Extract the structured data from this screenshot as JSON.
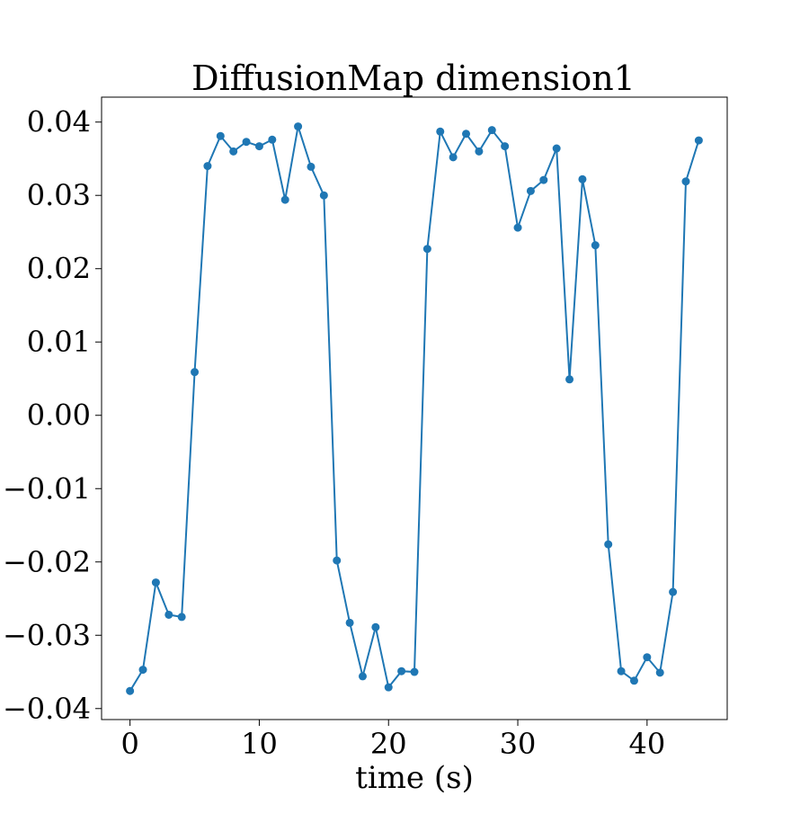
{
  "chart_data": {
    "type": "line",
    "title": "DiffusionMap dimension1",
    "xlabel": "time (s)",
    "ylabel": "",
    "xlim": [
      -2.2,
      46.2
    ],
    "ylim": [
      -0.0415,
      0.0434
    ],
    "x_ticks": [
      0,
      10,
      20,
      30,
      40
    ],
    "x_tick_labels": [
      "0",
      "10",
      "20",
      "30",
      "40"
    ],
    "y_ticks": [
      -0.04,
      -0.03,
      -0.02,
      -0.01,
      0.0,
      0.01,
      0.02,
      0.03,
      0.04
    ],
    "y_tick_labels": [
      "−0.04",
      "−0.03",
      "−0.02",
      "−0.01",
      "0.00",
      "0.01",
      "0.02",
      "0.03",
      "0.04"
    ],
    "grid": false,
    "series": [
      {
        "color": "#1f77b4",
        "marker": "circle",
        "x": [
          0,
          1,
          2,
          3,
          4,
          5,
          6,
          7,
          8,
          9,
          10,
          11,
          12,
          13,
          14,
          15,
          16,
          17,
          18,
          19,
          20,
          21,
          22,
          23,
          24,
          25,
          26,
          27,
          28,
          29,
          30,
          31,
          32,
          33,
          34,
          35,
          36,
          37,
          38,
          39,
          40,
          41,
          42,
          43,
          44
        ],
        "y": [
          -0.0376,
          -0.0347,
          -0.0228,
          -0.0272,
          -0.0275,
          0.0059,
          0.034,
          0.0381,
          0.036,
          0.0373,
          0.0367,
          0.0376,
          0.0294,
          0.0394,
          0.0339,
          0.03,
          -0.0198,
          -0.0283,
          -0.0356,
          -0.0289,
          -0.0371,
          -0.0349,
          -0.035,
          0.0227,
          0.0387,
          0.0352,
          0.0384,
          0.036,
          0.0389,
          0.0367,
          0.0256,
          0.0306,
          0.0321,
          0.0364,
          0.0049,
          0.0322,
          0.0232,
          -0.0176,
          -0.0349,
          -0.0362,
          -0.033,
          -0.0351,
          -0.0241,
          0.0319,
          0.0375
        ]
      }
    ]
  }
}
